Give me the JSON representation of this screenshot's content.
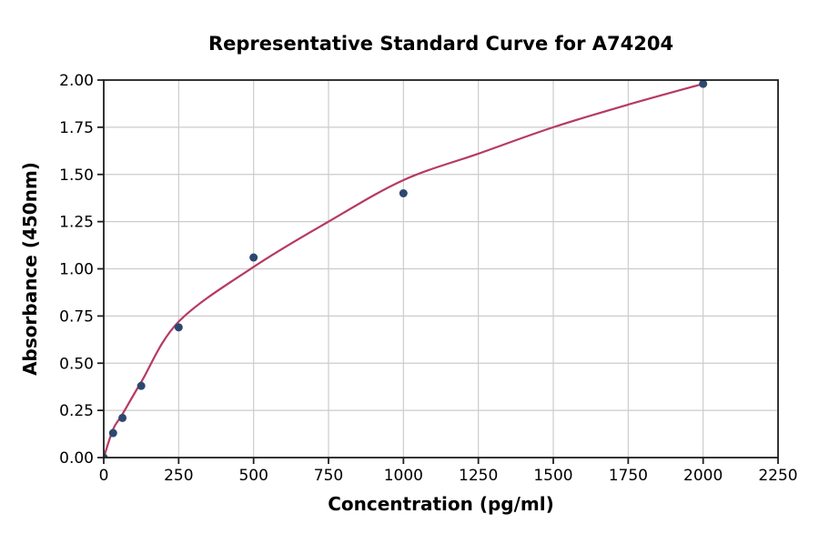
{
  "chart_data": {
    "type": "scatter",
    "title": "Representative Standard Curve for A74204",
    "xlabel": "Concentration (pg/ml)",
    "ylabel": "Absorbance (450nm)",
    "xlim": [
      0,
      2250
    ],
    "ylim": [
      0,
      2.0
    ],
    "x_ticks": [
      0,
      250,
      500,
      750,
      1000,
      1250,
      1500,
      1750,
      2000,
      2250
    ],
    "x_tick_labels": [
      "0",
      "250",
      "500",
      "750",
      "1000",
      "1250",
      "1500",
      "1750",
      "2000",
      "2250"
    ],
    "y_ticks": [
      0,
      0.25,
      0.5,
      0.75,
      1.0,
      1.25,
      1.5,
      1.75,
      2.0
    ],
    "y_tick_labels": [
      "0.00",
      "0.25",
      "0.50",
      "0.75",
      "1.00",
      "1.25",
      "1.50",
      "1.75",
      "2.00"
    ],
    "grid": true,
    "legend": null,
    "series": [
      {
        "name": "fit-curve",
        "type": "line",
        "x": [
          0,
          31.25,
          62.5,
          125,
          250,
          500,
          750,
          1000,
          1250,
          1500,
          1750,
          2000
        ],
        "y": [
          0.0,
          0.15,
          0.23,
          0.4,
          0.72,
          1.01,
          1.25,
          1.47,
          1.61,
          1.75,
          1.87,
          1.98
        ],
        "color": "#b63a62",
        "line_width": 2.2
      },
      {
        "name": "standard-points",
        "type": "scatter",
        "x": [
          0,
          31.25,
          62.5,
          125,
          250,
          500,
          1000,
          2000
        ],
        "y": [
          0.0,
          0.13,
          0.21,
          0.38,
          0.69,
          1.06,
          1.4,
          1.98
        ],
        "color": "#2b4970",
        "marker_radius": 4.5
      }
    ],
    "colors": {
      "grid": "#cccccc",
      "spine": "#1f1f1f",
      "tick": "#1f1f1f",
      "text": "#000000",
      "background": "#ffffff"
    }
  }
}
